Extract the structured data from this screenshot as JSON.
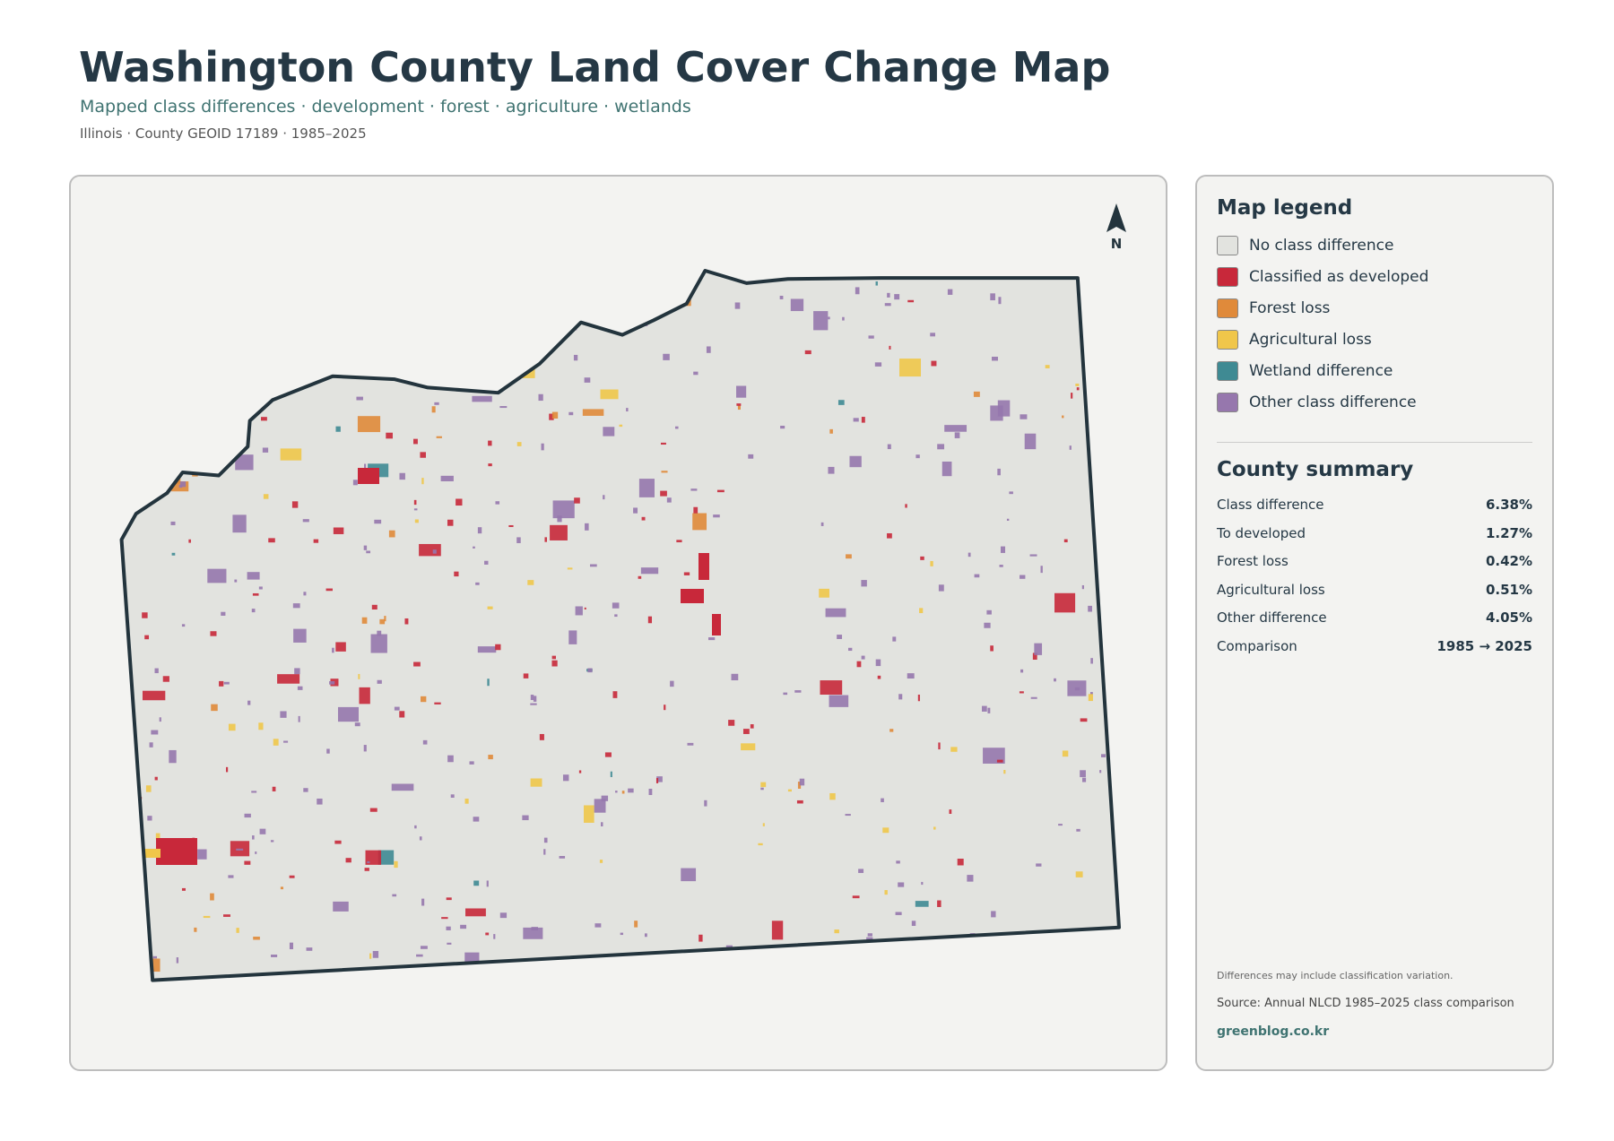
{
  "header": {
    "title": "Washington County Land Cover Change Map",
    "subtitle": "Mapped class differences · development · forest · agriculture · wetlands",
    "meta": "Illinois · County GEOID 17189 · 1985–2025"
  },
  "map": {
    "north_label": "N"
  },
  "legend": {
    "title": "Map legend",
    "items": [
      {
        "label": "No class difference",
        "color": "#e2e3df"
      },
      {
        "label": "Classified as developed",
        "color": "#c8283a"
      },
      {
        "label": "Forest loss",
        "color": "#e08a3a"
      },
      {
        "label": "Agricultural loss",
        "color": "#f0c64a"
      },
      {
        "label": "Wetland difference",
        "color": "#3f8a93"
      },
      {
        "label": "Other class difference",
        "color": "#9677ad"
      }
    ]
  },
  "summary": {
    "title": "County summary",
    "rows": [
      [
        "Class difference",
        "6.38%"
      ],
      [
        "To developed",
        "1.27%"
      ],
      [
        "Forest loss",
        "0.42%"
      ],
      [
        "Agricultural loss",
        "0.51%"
      ],
      [
        "Other difference",
        "4.05%"
      ],
      [
        "Comparison",
        "1985 → 2025"
      ]
    ]
  },
  "footer": {
    "note": "Differences may include classification variation.",
    "source": "Source: Annual NLCD 1985–2025 class comparison",
    "site": "greenblog.co.kr"
  }
}
